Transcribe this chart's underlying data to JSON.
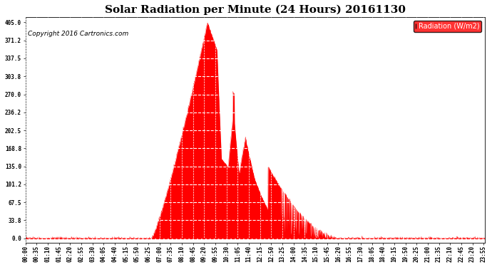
{
  "title": "Solar Radiation per Minute (24 Hours) 20161130",
  "copyright_text": "Copyright 2016 Cartronics.com",
  "legend_label": "Radiation (W/m2)",
  "background_color": "#ffffff",
  "plot_bg_color": "#ffffff",
  "fill_color": "#ff0000",
  "line_color": "#ff0000",
  "grid_color": "#ffffff",
  "grid_linestyle": "--",
  "ytick_labels": [
    "0.0",
    "33.8",
    "67.5",
    "101.2",
    "135.0",
    "168.8",
    "202.5",
    "236.2",
    "270.0",
    "303.8",
    "337.5",
    "371.2",
    "405.0"
  ],
  "ytick_values": [
    0.0,
    33.8,
    67.5,
    101.2,
    135.0,
    168.8,
    202.5,
    236.2,
    270.0,
    303.8,
    337.5,
    371.2,
    405.0
  ],
  "ymax": 415.0,
  "ymin": -8.0,
  "xtick_interval_minutes": 35,
  "total_minutes": 1440,
  "title_fontsize": 11,
  "tick_label_fontsize": 5.5,
  "legend_fontsize": 7,
  "copyright_fontsize": 6.5,
  "sunrise_min": 395,
  "sunset_min": 985,
  "peak_min": 570,
  "peak_val": 405.0
}
